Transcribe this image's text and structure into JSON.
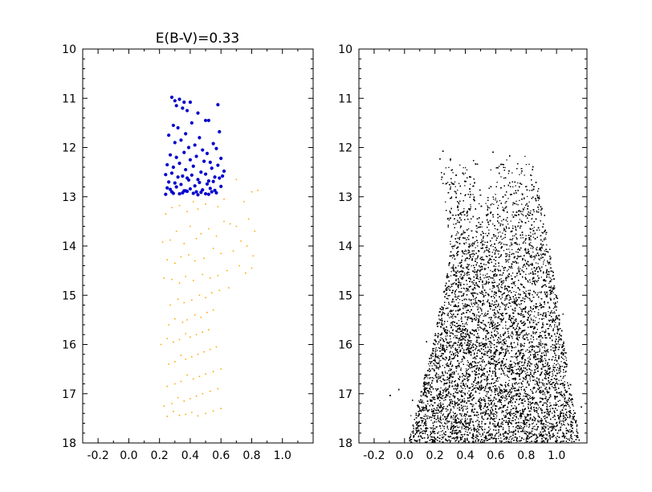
{
  "figure": {
    "background": "#ffffff"
  },
  "chart_data": [
    {
      "type": "scatter",
      "title": "E(B-V)=0.33",
      "xlabel": "",
      "ylabel": "",
      "xlim": [
        -0.3,
        1.2
      ],
      "ylim": [
        18,
        10
      ],
      "y_inverted": true,
      "xticks": [
        "-0.2",
        "0.0",
        "0.2",
        "0.4",
        "0.6",
        "0.8",
        "1.0"
      ],
      "xtick_values": [
        -0.2,
        0.0,
        0.2,
        0.4,
        0.6,
        0.8,
        1.0
      ],
      "yticks": [
        "10",
        "11",
        "12",
        "13",
        "14",
        "15",
        "16",
        "17",
        "18"
      ],
      "ytick_values": [
        10,
        11,
        12,
        13,
        14,
        15,
        16,
        17,
        18
      ],
      "grid": false,
      "series": [
        {
          "color": "#0000cc",
          "marker": "dot-large",
          "x": [
            0.28,
            0.3,
            0.31,
            0.33,
            0.35,
            0.36,
            0.38,
            0.4,
            0.45,
            0.58,
            0.29,
            0.32,
            0.37,
            0.41,
            0.5,
            0.52,
            0.46,
            0.59,
            0.26,
            0.3,
            0.34,
            0.39,
            0.43,
            0.48,
            0.55,
            0.57,
            0.27,
            0.31,
            0.36,
            0.4,
            0.44,
            0.51,
            0.53,
            0.6,
            0.25,
            0.29,
            0.33,
            0.37,
            0.42,
            0.47,
            0.49,
            0.54,
            0.58,
            0.62,
            0.24,
            0.28,
            0.32,
            0.35,
            0.38,
            0.41,
            0.45,
            0.5,
            0.52,
            0.56,
            0.61,
            0.26,
            0.3,
            0.34,
            0.39,
            0.43,
            0.46,
            0.51,
            0.55,
            0.59,
            0.25,
            0.27,
            0.31,
            0.36,
            0.4,
            0.44,
            0.48,
            0.53,
            0.57,
            0.6,
            0.28,
            0.33,
            0.37,
            0.42,
            0.47,
            0.52,
            0.56,
            0.24,
            0.29,
            0.35,
            0.38,
            0.45,
            0.5,
            0.54
          ],
          "y": [
            10.98,
            11.05,
            11.15,
            11.02,
            11.2,
            11.08,
            11.25,
            11.08,
            11.3,
            11.13,
            11.55,
            11.6,
            11.72,
            11.5,
            11.45,
            11.45,
            11.8,
            11.68,
            11.75,
            11.9,
            11.85,
            12.0,
            11.95,
            12.05,
            11.92,
            12.02,
            12.15,
            12.2,
            12.1,
            12.25,
            12.18,
            12.12,
            12.3,
            12.22,
            12.35,
            12.4,
            12.32,
            12.45,
            12.38,
            12.5,
            12.28,
            12.42,
            12.36,
            12.48,
            12.55,
            12.52,
            12.6,
            12.58,
            12.62,
            12.56,
            12.65,
            12.54,
            12.68,
            12.6,
            12.58,
            12.7,
            12.72,
            12.75,
            12.66,
            12.78,
            12.71,
            12.74,
            12.69,
            12.62,
            12.82,
            12.85,
            12.8,
            12.88,
            12.84,
            12.9,
            12.86,
            12.83,
            12.92,
            12.79,
            12.9,
            12.94,
            12.88,
            12.93,
            12.91,
            12.95,
            12.87,
            12.95,
            12.93,
            12.92,
            12.89,
            12.96,
            12.94,
            12.9
          ]
        },
        {
          "color": "#ffa500",
          "marker": "dot-small",
          "x": [
            0.7,
            0.8,
            0.84,
            0.75,
            0.62,
            0.58,
            0.5,
            0.45,
            0.42,
            0.38,
            0.33,
            0.28,
            0.24,
            0.62,
            0.7,
            0.78,
            0.82,
            0.73,
            0.66,
            0.57,
            0.52,
            0.47,
            0.44,
            0.4,
            0.36,
            0.31,
            0.27,
            0.22,
            0.77,
            0.81,
            0.68,
            0.6,
            0.55,
            0.49,
            0.43,
            0.39,
            0.34,
            0.3,
            0.25,
            0.72,
            0.8,
            0.76,
            0.64,
            0.58,
            0.53,
            0.48,
            0.42,
            0.37,
            0.33,
            0.28,
            0.23,
            0.65,
            0.59,
            0.54,
            0.5,
            0.46,
            0.41,
            0.36,
            0.32,
            0.27,
            0.55,
            0.51,
            0.47,
            0.43,
            0.38,
            0.35,
            0.3,
            0.26,
            0.52,
            0.48,
            0.44,
            0.4,
            0.37,
            0.33,
            0.29,
            0.25,
            0.21,
            0.57,
            0.53,
            0.49,
            0.45,
            0.41,
            0.37,
            0.34,
            0.3,
            0.26,
            0.6,
            0.55,
            0.5,
            0.46,
            0.42,
            0.38,
            0.34,
            0.3,
            0.25,
            0.58,
            0.53,
            0.48,
            0.44,
            0.4,
            0.36,
            0.32,
            0.28,
            0.23,
            0.6,
            0.55,
            0.5,
            0.45,
            0.41,
            0.37,
            0.33,
            0.29,
            0.25
          ],
          "y": [
            12.65,
            12.9,
            12.87,
            13.1,
            13.05,
            13.2,
            13.15,
            13.25,
            13.1,
            13.3,
            13.18,
            13.22,
            13.35,
            13.5,
            13.6,
            13.45,
            13.7,
            13.9,
            13.55,
            13.8,
            13.65,
            13.75,
            13.85,
            13.6,
            13.95,
            13.7,
            13.88,
            13.92,
            14.0,
            14.2,
            14.1,
            14.15,
            14.05,
            14.25,
            14.3,
            14.18,
            14.22,
            14.35,
            14.28,
            14.4,
            14.45,
            14.55,
            14.5,
            14.6,
            14.65,
            14.58,
            14.7,
            14.62,
            14.75,
            14.68,
            14.65,
            14.85,
            14.9,
            14.95,
            15.05,
            15.0,
            15.1,
            15.15,
            15.08,
            15.2,
            15.3,
            15.35,
            15.45,
            15.4,
            15.5,
            15.55,
            15.48,
            15.6,
            15.7,
            15.75,
            15.8,
            15.85,
            15.78,
            15.9,
            15.95,
            15.88,
            16.0,
            16.05,
            16.1,
            16.15,
            16.2,
            16.25,
            16.3,
            16.22,
            16.35,
            16.4,
            16.5,
            16.55,
            16.6,
            16.65,
            16.7,
            16.62,
            16.75,
            16.8,
            16.85,
            16.9,
            16.95,
            17.0,
            17.05,
            17.1,
            17.15,
            17.08,
            17.2,
            17.25,
            17.3,
            17.35,
            17.4,
            17.45,
            17.38,
            17.42,
            17.44,
            17.36,
            17.46
          ]
        }
      ]
    },
    {
      "type": "scatter",
      "title": "",
      "xlabel": "",
      "ylabel": "",
      "xlim": [
        -0.3,
        1.2
      ],
      "ylim": [
        18,
        10
      ],
      "y_inverted": true,
      "xticks": [
        "-0.2",
        "0.0",
        "0.2",
        "0.4",
        "0.6",
        "0.8",
        "1.0"
      ],
      "xtick_values": [
        -0.2,
        0.0,
        0.2,
        0.4,
        0.6,
        0.8,
        1.0
      ],
      "yticks": [
        "10",
        "11",
        "12",
        "13",
        "14",
        "15",
        "16",
        "17",
        "18"
      ],
      "ytick_values": [
        10,
        11,
        12,
        13,
        14,
        15,
        16,
        17,
        18
      ],
      "grid": false,
      "series": [
        {
          "color": "#000000",
          "marker": "dot-small",
          "density": "very dense cloud",
          "bright_limit": 12.0,
          "faint_limit": 18.0,
          "blue_edge": [
            [
              12.0,
              0.2
            ],
            [
              13.0,
              0.26
            ],
            [
              14.0,
              0.3
            ],
            [
              15.0,
              0.25
            ],
            [
              16.0,
              0.18
            ],
            [
              17.0,
              0.1
            ],
            [
              18.0,
              0.02
            ]
          ],
          "red_edge": [
            [
              12.0,
              0.82
            ],
            [
              13.0,
              0.9
            ],
            [
              14.0,
              0.95
            ],
            [
              15.0,
              1.0
            ],
            [
              16.0,
              1.05
            ],
            [
              17.0,
              1.1
            ],
            [
              18.0,
              1.15
            ]
          ],
          "gap_center_x": 0.52,
          "gap_bottom_mag": 13.8
        }
      ]
    }
  ]
}
